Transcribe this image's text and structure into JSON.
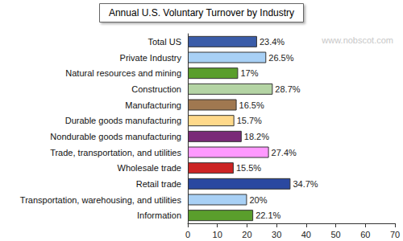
{
  "chart_data": {
    "type": "bar",
    "orientation": "horizontal",
    "title": "Annual U.S. Voluntary Turnover by Industry",
    "annotations": [
      "www.nobscot.com"
    ],
    "categories": [
      "Total US",
      "Private Industry",
      "Natural resources and mining",
      "Construction",
      "Manufacturing",
      "Durable goods manufacturing",
      "Nondurable goods manufacturing",
      "Trade, transportation, and utilities",
      "Wholesale trade",
      "Retail trade",
      "Transportation, warehousing, and utilities",
      "Information"
    ],
    "values": [
      23.4,
      26.5,
      17,
      28.7,
      16.5,
      15.7,
      18.2,
      27.4,
      15.5,
      34.7,
      20,
      22.1
    ],
    "value_labels": [
      "23.4%",
      "26.5%",
      "17%",
      "28.7%",
      "16.5%",
      "15.7%",
      "18.2%",
      "27.4%",
      "15.5%",
      "34.7%",
      "20%",
      "22.1%"
    ],
    "colors": [
      "#3a5ca8",
      "#a8d0f5",
      "#5a9e2c",
      "#b4d4a4",
      "#a07850",
      "#ffd98a",
      "#7a2a78",
      "#ff99ff",
      "#cc2424",
      "#2a48a0",
      "#a8d0f5",
      "#5a9e2c"
    ],
    "data_labels": true,
    "grid": false,
    "xlim": [
      0,
      70
    ],
    "xticks": [
      0,
      10,
      20,
      30,
      40,
      50,
      60,
      70
    ]
  }
}
